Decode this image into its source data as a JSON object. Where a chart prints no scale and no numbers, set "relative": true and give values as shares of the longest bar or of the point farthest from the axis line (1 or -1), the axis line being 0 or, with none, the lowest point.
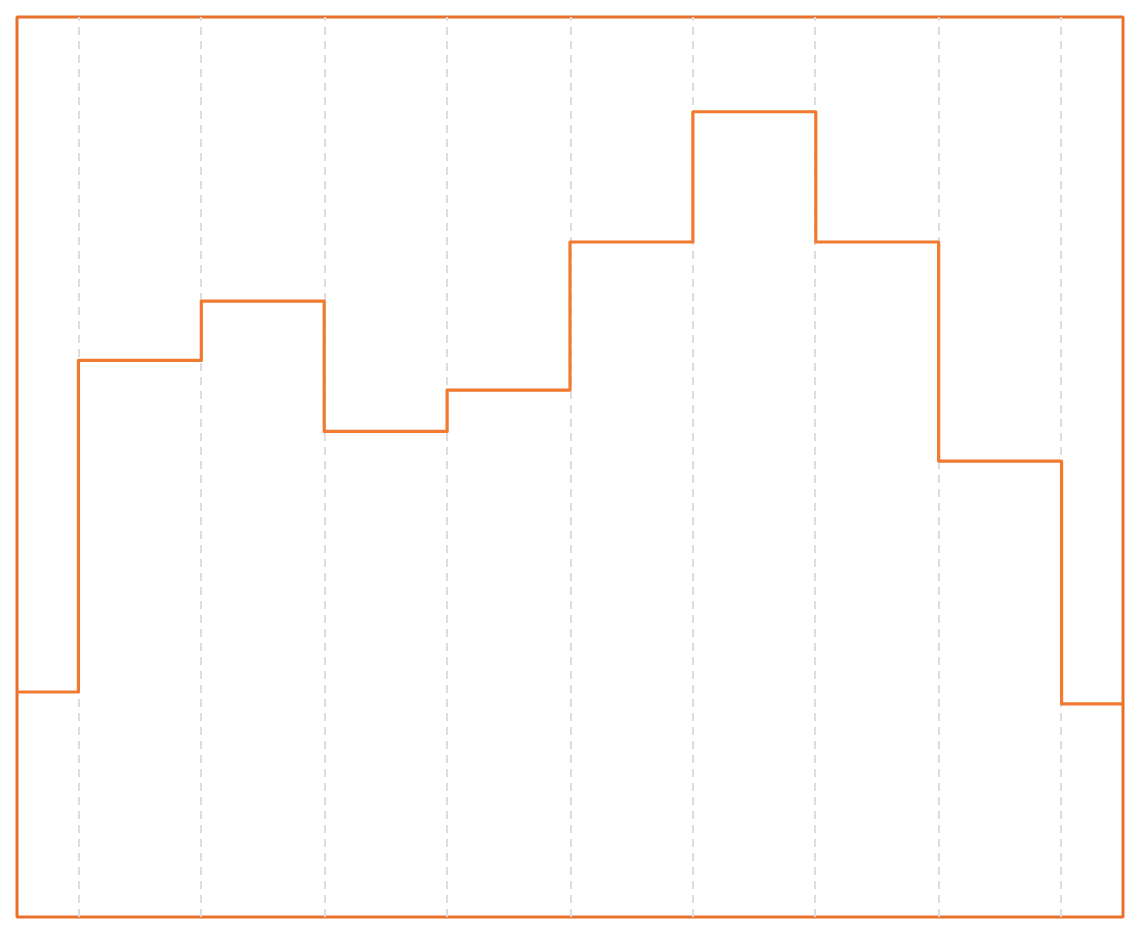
{
  "chart_data": {
    "type": "step",
    "relative": true,
    "categories": [
      null,
      null,
      null,
      null,
      null,
      null,
      null,
      null,
      null,
      null
    ],
    "series": [
      {
        "color": "#f07a30",
        "values": [
          0.02,
          0.58,
          0.68,
          0.46,
          0.53,
          0.78,
          1,
          0.78,
          0.41,
          0
        ]
      }
    ],
    "grid": "x",
    "line_style": "solid",
    "marker": "none",
    "tick_labels": false
  }
}
